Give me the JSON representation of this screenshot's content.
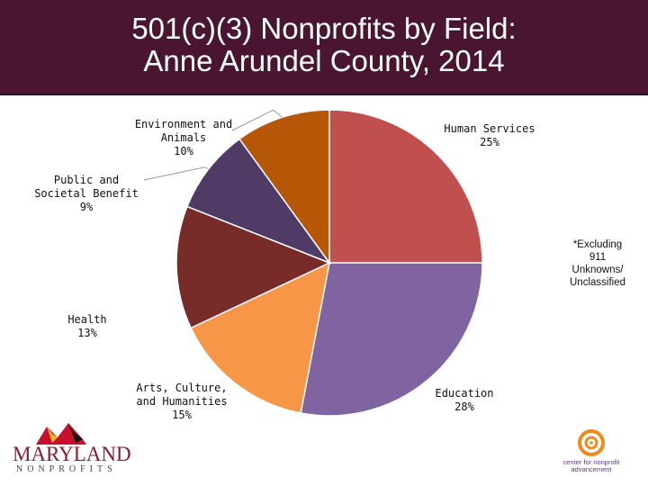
{
  "header": {
    "title": "501(c)(3) Nonprofits by Field:\nAnne Arundel County, 2014",
    "bg_color": "#4a1530"
  },
  "chart_data": {
    "type": "pie",
    "title": "501(c)(3) Nonprofits by Field: Anne Arundel County, 2014",
    "slices": [
      {
        "label": "Human Services",
        "percent_label": "25%",
        "value": 25,
        "color": "#c0504d"
      },
      {
        "label": "Education",
        "percent_label": "28%",
        "value": 28,
        "color": "#8064a2"
      },
      {
        "label": "Arts, Culture, and Humanities",
        "percent_label": "15%",
        "value": 15,
        "color": "#f79646"
      },
      {
        "label": "Health",
        "percent_label": "13%",
        "value": 13,
        "color": "#772c2a"
      },
      {
        "label": "Public and Societal Benefit",
        "percent_label": "9%",
        "value": 9,
        "color": "#4f3b66"
      },
      {
        "label": "Environment and Animals",
        "percent_label": "10%",
        "value": 10,
        "color": "#b65708"
      }
    ],
    "start_angle": "12 o'clock",
    "direction": "clockwise"
  },
  "note": "*Excluding\n911\nUnknowns/\nUnclassified",
  "logos": {
    "left": {
      "big": "MARYLAND",
      "small": "NONPROFITS"
    },
    "right": {
      "line1": "center for nonprofit",
      "line2": "advancement"
    }
  }
}
